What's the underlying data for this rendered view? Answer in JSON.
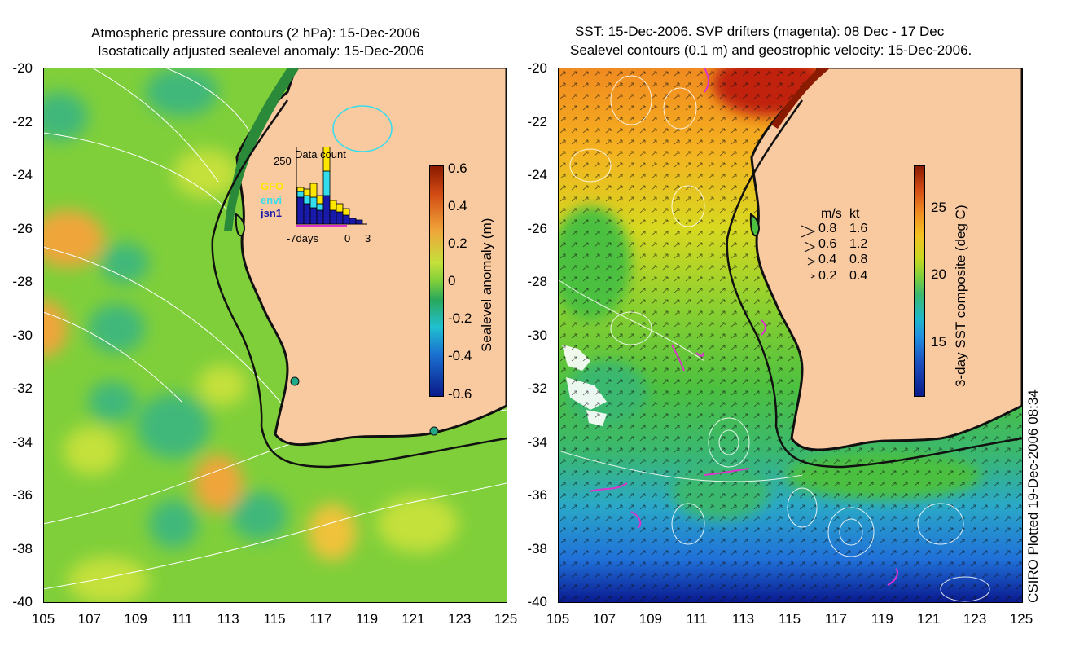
{
  "left_panel": {
    "title_line1": "Atmospheric pressure contours (2 hPa): 15-Dec-2006",
    "title_line2": "Isostatically adjusted sealevel anomaly: 15-Dec-2006",
    "y_ticks": [
      "-20",
      "-22",
      "-24",
      "-26",
      "-28",
      "-30",
      "-32",
      "-34",
      "-36",
      "-38",
      "-40"
    ],
    "x_ticks": [
      "105",
      "107",
      "109",
      "111",
      "113",
      "115",
      "117",
      "119",
      "121",
      "123",
      "125"
    ],
    "colorbar_ticks": [
      "0.6",
      "0.4",
      "0.2",
      "0",
      "-0.2",
      "-0.4",
      "-0.6"
    ],
    "colorbar_label": "Sealevel anomaly (m)",
    "inset": {
      "title": "Data count",
      "y_max_label": "250",
      "x_labels": [
        "-7days",
        "0",
        "3"
      ],
      "legend": [
        "GFO",
        "envi",
        "jsn1"
      ],
      "legend_colors": [
        "#ffe600",
        "#33ddee",
        "#1a1aaa"
      ]
    }
  },
  "right_panel": {
    "title_line1": "SST: 15-Dec-2006. SVP drifters (magenta): 08 Dec - 17 Dec",
    "title_line2": "Sealevel contours (0.1 m) and geostrophic velocity: 15-Dec-2006.",
    "y_ticks": [
      "-20",
      "-22",
      "-24",
      "-26",
      "-28",
      "-30",
      "-32",
      "-34",
      "-36",
      "-38",
      "-40"
    ],
    "x_ticks": [
      "105",
      "107",
      "109",
      "111",
      "113",
      "115",
      "117",
      "119",
      "121",
      "123",
      "125"
    ],
    "colorbar_ticks": [
      "25",
      "20",
      "15"
    ],
    "colorbar_label": "3-day SST composite (deg C)",
    "velocity_legend": {
      "header_ms": "m/s",
      "header_kt": "kt",
      "rows": [
        {
          "ms": "0.8",
          "kt": "1.6"
        },
        {
          "ms": "0.6",
          "kt": "1.2"
        },
        {
          "ms": "0.4",
          "kt": "0.8"
        },
        {
          "ms": "0.2",
          "kt": "0.4"
        }
      ]
    }
  },
  "footer": {
    "credit": "CSIRO Plotted 19-Dec-2006 08:34"
  },
  "colors": {
    "land": "#f9c9a0",
    "coast": "#111111",
    "drifter": "#dd33cc",
    "contour": "#ffffff"
  }
}
